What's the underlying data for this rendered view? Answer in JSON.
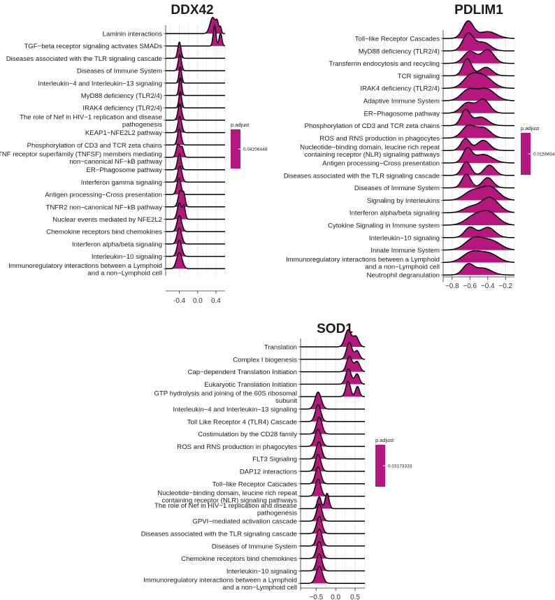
{
  "colors": {
    "fill": "#b5177f",
    "grid": "#e4e4e4",
    "outline": "#000000"
  },
  "chart_data": [
    {
      "type": "ridgeline",
      "title": "DDX42",
      "xlim": [
        -0.7,
        0.6
      ],
      "xticks": [
        -0.4,
        0.0,
        0.4
      ],
      "xtick_labels": [
        "-0.4",
        "0.0",
        "0.4"
      ],
      "legend": {
        "title": "p.adjust",
        "value_label": "0.04206448"
      },
      "categories": [
        "Laminin interactions",
        "TGF−beta receptor signaling activates SMADs",
        "Diseases associated with the TLR signaling cascade",
        "Diseases of Immune System",
        "Interleukin−4 and Interleukin−13 signaling",
        "MyD88 deficiency (TLR2/4)",
        "IRAK4 deficiency (TLR2/4)",
        "The role of Nef in HIV−1 replication and disease\npathogenesis",
        "KEAP1−NFE2L2 pathway",
        "Phosphorylation of CD3 and TCR zeta chains",
        "TNF receptor superfamily (TNFSF) members mediating\nnon−canonical NF−kB pathway",
        "ER−Phagosome pathway",
        "Interferon gamma signaling",
        "Antigen processing−Cross presentation",
        "TNFR2 non−canonical NF−kB pathway",
        "Nuclear events mediated by NFE2L2",
        "Chemokine receptors bind chemokines",
        "Interferon alpha/beta signaling",
        "Interleukin−10 signaling",
        "Immunoregulatory interactions between a Lymphoid\nand a non−Lymphoid cell"
      ],
      "series": [
        {
          "peaks": [
            [
              0.33,
              0.06,
              1.0
            ],
            [
              0.43,
              0.03,
              0.6
            ],
            [
              0.5,
              0.02,
              0.4
            ]
          ]
        },
        {
          "peaks": [
            [
              0.37,
              0.03,
              1.3
            ],
            [
              0.5,
              0.03,
              0.8
            ]
          ]
        },
        {
          "peaks": [
            [
              -0.4,
              0.035,
              1.0
            ]
          ]
        },
        {
          "peaks": [
            [
              -0.39,
              0.035,
              1.0
            ]
          ]
        },
        {
          "peaks": [
            [
              -0.38,
              0.03,
              1.0
            ]
          ]
        },
        {
          "peaks": [
            [
              -0.38,
              0.03,
              1.1
            ]
          ]
        },
        {
          "peaks": [
            [
              -0.38,
              0.03,
              1.0
            ]
          ]
        },
        {
          "peaks": [
            [
              -0.39,
              0.04,
              1.0
            ]
          ]
        },
        {
          "peaks": [
            [
              -0.39,
              0.04,
              1.0
            ]
          ]
        },
        {
          "peaks": [
            [
              -0.4,
              0.04,
              1.0
            ]
          ]
        },
        {
          "peaks": [
            [
              -0.43,
              0.04,
              0.8
            ],
            [
              -0.34,
              0.035,
              0.6
            ]
          ]
        },
        {
          "peaks": [
            [
              -0.4,
              0.04,
              1.0
            ]
          ]
        },
        {
          "peaks": [
            [
              -0.39,
              0.045,
              1.0
            ]
          ]
        },
        {
          "peaks": [
            [
              -0.41,
              0.045,
              1.0
            ]
          ]
        },
        {
          "peaks": [
            [
              -0.38,
              0.045,
              1.0
            ],
            [
              -0.3,
              0.03,
              0.7
            ]
          ]
        },
        {
          "peaks": [
            [
              -0.4,
              0.045,
              1.0
            ],
            [
              -0.3,
              0.03,
              0.8
            ]
          ]
        },
        {
          "peaks": [
            [
              -0.4,
              0.05,
              1.0
            ]
          ]
        },
        {
          "peaks": [
            [
              -0.4,
              0.05,
              1.0
            ]
          ]
        },
        {
          "peaks": [
            [
              -0.4,
              0.05,
              1.0
            ]
          ]
        },
        {
          "peaks": [
            [
              -0.4,
              0.06,
              1.0
            ]
          ]
        }
      ]
    },
    {
      "type": "ridgeline",
      "title": "PDLIM1",
      "xlim": [
        -0.9,
        -0.1
      ],
      "xticks": [
        -0.8,
        -0.6,
        -0.4,
        -0.2
      ],
      "xtick_labels": [
        "−0.8",
        "−0.6",
        "−0.4",
        "−0.2"
      ],
      "legend": {
        "title": "p.adjust",
        "value_label": "0.01596044"
      },
      "categories": [
        "Toll−like Receptor Cascades",
        "MyD88 deficiency (TLR2/4)",
        "Transferrin endocytosis and recycling",
        "TCR signaling",
        "IRAK4 deficiency (TLR2/4)",
        "Adaptive Immune System",
        "ER−Phagosome pathway",
        "Phosphorylation of CD3 and TCR zeta chains",
        "ROS and RNS production in phagocytes",
        "Nucleotide−binding domain, leucine rich repeat\ncontaining receptor (NLR) signaling pathways",
        "Antigen processing−Cross presentation",
        "Diseases associated with the TLR signaling cascade",
        "Diseases of Immune System",
        "Signaling by Interleukins",
        "Interferon alpha/beta signaling",
        "Cytokine Signaling in Immune system",
        "Interleukin−10 signaling",
        "Innate Immune System",
        "Immunoregulatory interactions between a Lymphoid\nand a non−Lymphoid cell",
        "Neutrophil degranulation"
      ],
      "series": [
        {
          "peaks": [
            [
              -0.62,
              0.06,
              1.0
            ],
            [
              -0.4,
              0.1,
              0.4
            ]
          ]
        },
        {
          "peaks": [
            [
              -0.62,
              0.06,
              1.0
            ],
            [
              -0.45,
              0.08,
              0.5
            ]
          ]
        },
        {
          "peaks": [
            [
              -0.6,
              0.07,
              0.7
            ],
            [
              -0.4,
              0.07,
              0.8
            ]
          ]
        },
        {
          "peaks": [
            [
              -0.63,
              0.05,
              1.0
            ],
            [
              -0.42,
              0.07,
              0.5
            ]
          ]
        },
        {
          "peaks": [
            [
              -0.6,
              0.08,
              0.6
            ],
            [
              -0.45,
              0.1,
              0.7
            ]
          ]
        },
        {
          "peaks": [
            [
              -0.62,
              0.08,
              0.6
            ],
            [
              -0.42,
              0.1,
              0.7
            ]
          ]
        },
        {
          "peaks": [
            [
              -0.63,
              0.07,
              0.6
            ],
            [
              -0.45,
              0.07,
              0.8
            ]
          ]
        },
        {
          "peaks": [
            [
              -0.65,
              0.05,
              0.9
            ],
            [
              -0.48,
              0.08,
              0.5
            ]
          ]
        },
        {
          "peaks": [
            [
              -0.62,
              0.07,
              0.7
            ],
            [
              -0.45,
              0.08,
              0.6
            ]
          ]
        },
        {
          "peaks": [
            [
              -0.65,
              0.05,
              0.7
            ],
            [
              -0.45,
              0.07,
              0.6
            ]
          ]
        },
        {
          "peaks": [
            [
              -0.63,
              0.05,
              0.8
            ],
            [
              -0.45,
              0.1,
              0.5
            ]
          ]
        },
        {
          "peaks": [
            [
              -0.64,
              0.05,
              0.8
            ],
            [
              -0.38,
              0.06,
              0.6
            ]
          ]
        },
        {
          "peaks": [
            [
              -0.64,
              0.05,
              0.8
            ],
            [
              -0.4,
              0.06,
              0.6
            ]
          ]
        },
        {
          "peaks": [
            [
              -0.58,
              0.09,
              0.5
            ],
            [
              -0.38,
              0.1,
              0.8
            ]
          ]
        },
        {
          "peaks": [
            [
              -0.6,
              0.08,
              0.3
            ],
            [
              -0.38,
              0.1,
              0.9
            ]
          ]
        },
        {
          "peaks": [
            [
              -0.55,
              0.1,
              0.5
            ],
            [
              -0.38,
              0.1,
              0.7
            ]
          ]
        },
        {
          "peaks": [
            [
              -0.6,
              0.06,
              0.6
            ],
            [
              -0.4,
              0.08,
              0.6
            ]
          ]
        },
        {
          "peaks": [
            [
              -0.55,
              0.1,
              0.7
            ],
            [
              -0.35,
              0.1,
              0.5
            ]
          ]
        },
        {
          "peaks": [
            [
              -0.58,
              0.1,
              0.6
            ],
            [
              -0.38,
              0.1,
              0.5
            ]
          ]
        },
        {
          "peaks": [
            [
              -0.62,
              0.06,
              0.6
            ],
            [
              -0.45,
              0.09,
              0.4
            ]
          ]
        }
      ]
    },
    {
      "type": "ridgeline",
      "title": "SOD1",
      "xlim": [
        -0.9,
        0.75
      ],
      "xticks": [
        -0.5,
        0.0,
        0.5
      ],
      "xtick_labels": [
        "−0.5",
        "0.0",
        "0.5"
      ],
      "legend": {
        "title": "p.adjust",
        "value_label": "0.03173333"
      },
      "categories": [
        "Translation",
        "Complex I biogenesis",
        "Cap−dependent Translation Initiation",
        "Eukaryotic Translation Initiation",
        "GTP hydrolysis and joining of the 60S ribosomal\nsubunit",
        "Interleukin−4 and Interleukin−13 signaling",
        "Toll Like Receptor 4 (TLR4) Cascade",
        "Costimulation by the CD28 family",
        "ROS and RNS production in phagocytes",
        "FLT3 Signaling",
        "DAP12 interactions",
        "Toll−like Receptor Cascades",
        "Nucleotide−binding domain, leucine rich repeat\ncontaining receptor (NLR) signaling pathways",
        "The role of Nef in HIV−1 replication and disease\npathogenesis",
        "GPVI−mediated activation cascade",
        "Diseases associated with the TLR signaling cascade",
        "Diseases of Immune System",
        "Chemokine receptors bind chemokines",
        "Interleukin−10 signaling",
        "Immunoregulatory interactions between a Lymphoid\nand a non−Lymphoid cell"
      ],
      "series": [
        {
          "peaks": [
            [
              0.32,
              0.08,
              1.0
            ],
            [
              0.52,
              0.07,
              0.6
            ]
          ]
        },
        {
          "peaks": [
            [
              0.35,
              0.07,
              1.0
            ],
            [
              0.55,
              0.06,
              0.5
            ]
          ]
        },
        {
          "peaks": [
            [
              0.35,
              0.07,
              0.9
            ],
            [
              0.55,
              0.07,
              0.6
            ]
          ]
        },
        {
          "peaks": [
            [
              0.33,
              0.07,
              0.9
            ],
            [
              0.55,
              0.06,
              0.6
            ]
          ]
        },
        {
          "peaks": [
            [
              0.32,
              0.06,
              0.9
            ],
            [
              0.56,
              0.05,
              0.6
            ]
          ]
        },
        {
          "peaks": [
            [
              -0.45,
              0.08,
              1.0
            ]
          ]
        },
        {
          "peaks": [
            [
              -0.45,
              0.07,
              1.0
            ]
          ]
        },
        {
          "peaks": [
            [
              -0.42,
              0.07,
              1.0
            ]
          ]
        },
        {
          "peaks": [
            [
              -0.45,
              0.08,
              1.0
            ]
          ]
        },
        {
          "peaks": [
            [
              -0.43,
              0.07,
              1.0
            ]
          ]
        },
        {
          "peaks": [
            [
              -0.45,
              0.07,
              1.0
            ]
          ]
        },
        {
          "peaks": [
            [
              -0.45,
              0.07,
              1.0
            ]
          ]
        },
        {
          "peaks": [
            [
              -0.45,
              0.07,
              1.0
            ]
          ]
        },
        {
          "peaks": [
            [
              -0.42,
              0.05,
              0.7
            ],
            [
              -0.22,
              0.05,
              0.9
            ]
          ]
        },
        {
          "peaks": [
            [
              -0.42,
              0.07,
              1.0
            ]
          ]
        },
        {
          "peaks": [
            [
              -0.42,
              0.07,
              1.0
            ]
          ]
        },
        {
          "peaks": [
            [
              -0.42,
              0.07,
              1.0
            ]
          ]
        },
        {
          "peaks": [
            [
              -0.42,
              0.07,
              1.0
            ]
          ]
        },
        {
          "peaks": [
            [
              -0.42,
              0.07,
              1.0
            ]
          ]
        },
        {
          "peaks": [
            [
              -0.42,
              0.08,
              1.0
            ]
          ]
        }
      ]
    }
  ]
}
